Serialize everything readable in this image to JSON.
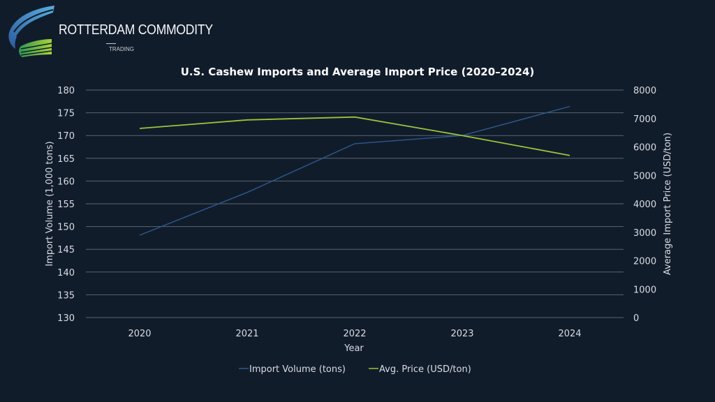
{
  "brand": {
    "name": "ROTTERDAM COMMODITY",
    "sub": "TRADING"
  },
  "colors": {
    "background": "#111c2b",
    "grid": "#5a6370",
    "volume": "#2d5a8e",
    "price": "#9ac53a"
  },
  "chart_data": {
    "type": "line",
    "title": "U.S. Cashew Imports and Average Import Price (2020–2024)",
    "xlabel": "Year",
    "ylabel": "Import Volume (1,000 tons)",
    "y2label": "Average Import Price (USD/ton)",
    "categories": [
      "2020",
      "2021",
      "2022",
      "2023",
      "2024"
    ],
    "ylim": [
      130,
      180
    ],
    "yticks": [
      "130",
      "135",
      "140",
      "145",
      "150",
      "155",
      "160",
      "165",
      "170",
      "175",
      "180"
    ],
    "y2lim": [
      0,
      8000
    ],
    "y2ticks": [
      "0",
      "1000",
      "2000",
      "3000",
      "4000",
      "5000",
      "6000",
      "7000",
      "8000"
    ],
    "grid": true,
    "legend_position": "bottom",
    "series": [
      {
        "name": "Import Volume (tons)",
        "axis": "left",
        "values": [
          148.1,
          157.5,
          168.2,
          170.0,
          176.4
        ]
      },
      {
        "name": "Avg. Price (USD/ton)",
        "axis": "right",
        "values": [
          6650,
          6950,
          7050,
          6400,
          5700
        ]
      }
    ]
  }
}
